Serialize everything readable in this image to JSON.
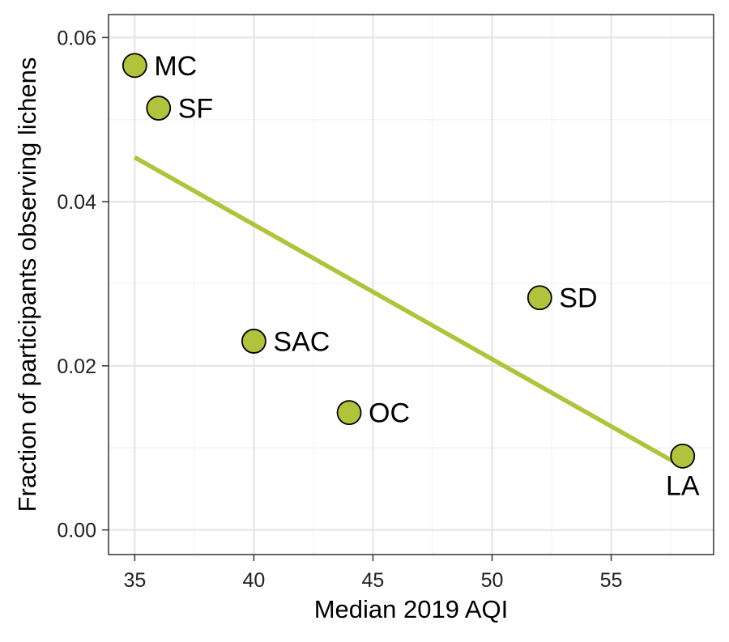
{
  "chart_data": {
    "type": "scatter",
    "xlabel": "Median 2019 AQI",
    "ylabel": "Fraction of participants observing lichens",
    "xlim": [
      33.9,
      59.3
    ],
    "ylim": [
      -0.003,
      0.0628
    ],
    "x_ticks": [
      35,
      40,
      45,
      50,
      55
    ],
    "x_minor_ticks": [
      37.5,
      42.5,
      47.5,
      52.5,
      57.5
    ],
    "y_ticks": [
      0.0,
      0.02,
      0.04,
      0.06
    ],
    "y_tick_labels": [
      "0.00",
      "0.02",
      "0.04",
      "0.06"
    ],
    "y_minor_ticks": [
      0.01,
      0.03,
      0.05
    ],
    "grid": true,
    "points": [
      {
        "label": "MC",
        "x": 35,
        "y": 0.0566,
        "label_pos": "right"
      },
      {
        "label": "SF",
        "x": 36,
        "y": 0.0514,
        "label_pos": "right"
      },
      {
        "label": "SD",
        "x": 52,
        "y": 0.0283,
        "label_pos": "right"
      },
      {
        "label": "SAC",
        "x": 40,
        "y": 0.023,
        "label_pos": "right"
      },
      {
        "label": "OC",
        "x": 44,
        "y": 0.0143,
        "label_pos": "right"
      },
      {
        "label": "LA",
        "x": 58,
        "y": 0.009,
        "label_pos": "below"
      }
    ],
    "trend_line": {
      "x": [
        35,
        57.7
      ],
      "y": [
        0.0454,
        0.0082
      ]
    },
    "colors": {
      "point_fill": "#b1c33d",
      "point_stroke": "#000000",
      "trend": "#b1c33d",
      "grid_major": "#e6e6e6",
      "grid_minor": "#f3f3f3",
      "panel_border": "#333333"
    }
  }
}
